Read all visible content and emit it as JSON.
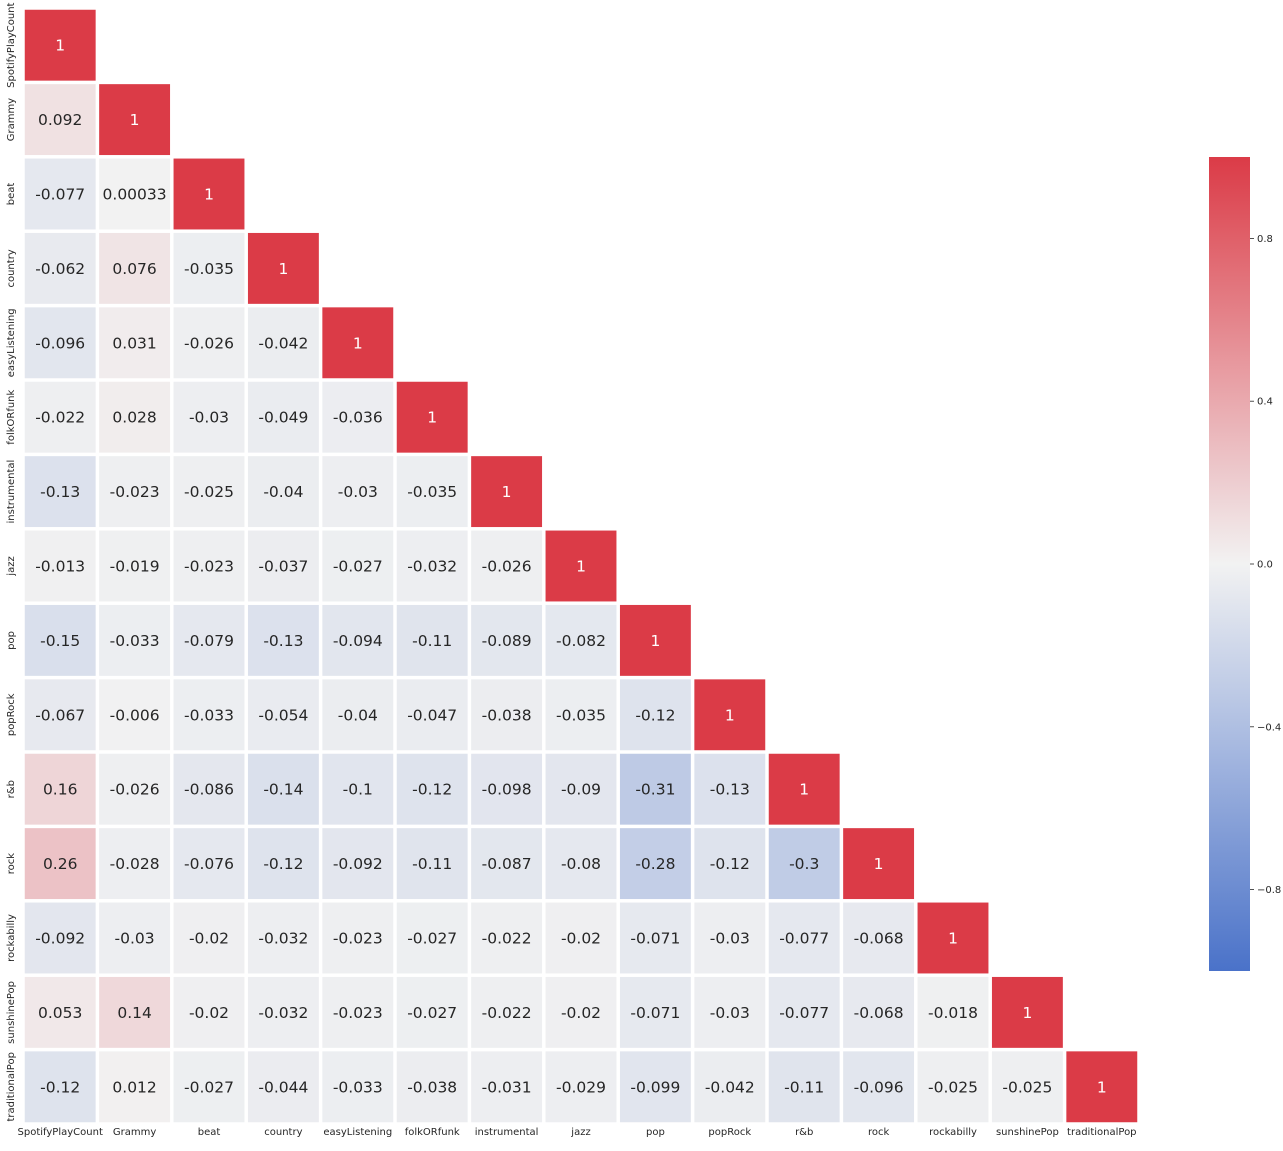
{
  "chart_data": {
    "type": "heatmap",
    "title": "",
    "xlabel": "",
    "ylabel": "",
    "mask": "upper-triangle",
    "labels": [
      "SpotifyPlayCount",
      "Grammy",
      "beat",
      "country",
      "easyListening",
      "folkORfunk",
      "instrumental",
      "jazz",
      "pop",
      "popRock",
      "r&b",
      "rock",
      "rockabilly",
      "sunshinePop",
      "traditionalPop"
    ],
    "matrix": [
      [
        "1"
      ],
      [
        "0.092",
        "1"
      ],
      [
        "-0.077",
        "0.00033",
        "1"
      ],
      [
        "-0.062",
        "0.076",
        "-0.035",
        "1"
      ],
      [
        "-0.096",
        "0.031",
        "-0.026",
        "-0.042",
        "1"
      ],
      [
        "-0.022",
        "0.028",
        "-0.03",
        "-0.049",
        "-0.036",
        "1"
      ],
      [
        "-0.13",
        "-0.023",
        "-0.025",
        "-0.04",
        "-0.03",
        "-0.035",
        "1"
      ],
      [
        "-0.013",
        "-0.019",
        "-0.023",
        "-0.037",
        "-0.027",
        "-0.032",
        "-0.026",
        "1"
      ],
      [
        "-0.15",
        "-0.033",
        "-0.079",
        "-0.13",
        "-0.094",
        "-0.11",
        "-0.089",
        "-0.082",
        "1"
      ],
      [
        "-0.067",
        "-0.006",
        "-0.033",
        "-0.054",
        "-0.04",
        "-0.047",
        "-0.038",
        "-0.035",
        "-0.12",
        "1"
      ],
      [
        "0.16",
        "-0.026",
        "-0.086",
        "-0.14",
        "-0.1",
        "-0.12",
        "-0.098",
        "-0.09",
        "-0.31",
        "-0.13",
        "1"
      ],
      [
        "0.26",
        "-0.028",
        "-0.076",
        "-0.12",
        "-0.092",
        "-0.11",
        "-0.087",
        "-0.08",
        "-0.28",
        "-0.12",
        "-0.3",
        "1"
      ],
      [
        "-0.092",
        "-0.03",
        "-0.02",
        "-0.032",
        "-0.023",
        "-0.027",
        "-0.022",
        "-0.02",
        "-0.071",
        "-0.03",
        "-0.077",
        "-0.068",
        "1"
      ],
      [
        "0.053",
        "0.14",
        "-0.02",
        "-0.032",
        "-0.023",
        "-0.027",
        "-0.022",
        "-0.02",
        "-0.071",
        "-0.03",
        "-0.077",
        "-0.068",
        "-0.018",
        "1"
      ],
      [
        "-0.12",
        "0.012",
        "-0.027",
        "-0.044",
        "-0.033",
        "-0.038",
        "-0.031",
        "-0.029",
        "-0.099",
        "-0.042",
        "-0.11",
        "-0.096",
        "-0.025",
        "-0.025",
        "1"
      ]
    ],
    "colorbar": {
      "vmin": -1.0,
      "vmax": 1.0,
      "ticks": [
        -0.8,
        -0.4,
        0.0,
        0.4,
        0.8
      ],
      "tick_labels": [
        "−0.8",
        "−0.4",
        "0.0",
        "0.4",
        "0.8"
      ],
      "colors": {
        "negative": "#4a72c9",
        "center": "#f2f2f2",
        "positive": "#db3b47"
      }
    }
  }
}
